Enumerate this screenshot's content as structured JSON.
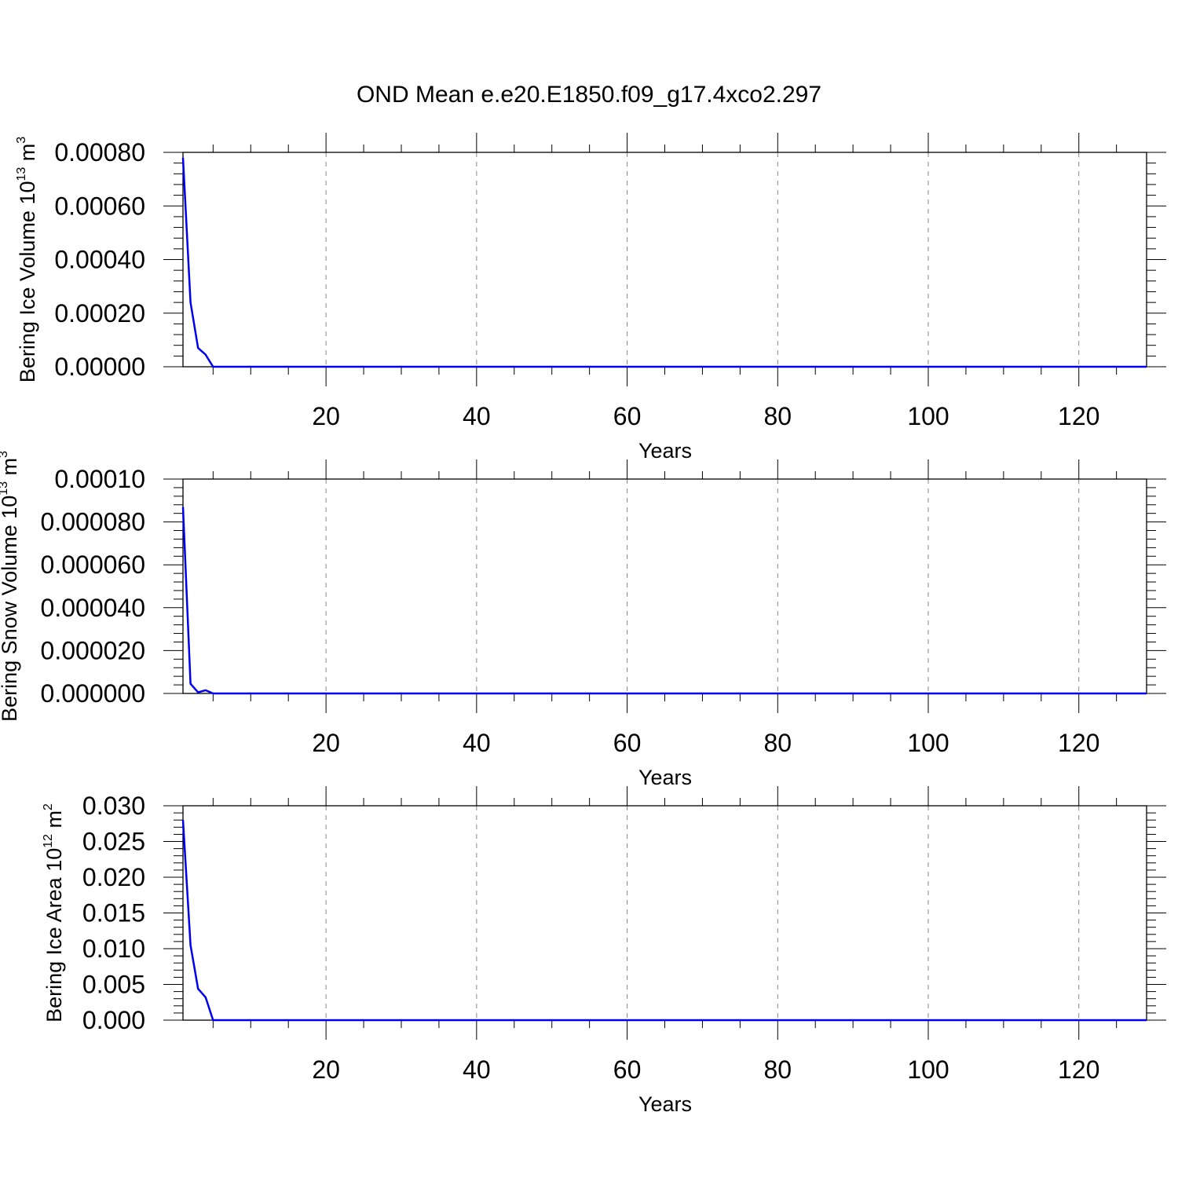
{
  "title": "OND Mean e.e20.E1850.f09_g17.4xco2.297",
  "colors": {
    "line": "#0000ee",
    "axis": "#000000",
    "grid": "#888888"
  },
  "chart_data": [
    {
      "type": "line",
      "ylabel": "Bering Ice Volume 10",
      "ylabel_exp": "13",
      "ylabel_unit": " m",
      "ylabel_unit_exp": "3",
      "xlabel": "Years",
      "xlim": [
        1,
        129
      ],
      "ylim": [
        0,
        0.0008
      ],
      "yticks": [
        0,
        0.0002,
        0.0004,
        0.0006,
        0.0008
      ],
      "ytick_labels": [
        "0.00000",
        "0.00020",
        "0.00040",
        "0.00060",
        "0.00080"
      ],
      "xticks": [
        20,
        40,
        60,
        80,
        100,
        120
      ],
      "xtick_labels": [
        "20",
        "40",
        "60",
        "80",
        "100",
        "120"
      ],
      "grid": "vertical dashed",
      "series": [
        {
          "x": [
            1,
            2,
            3,
            4,
            5,
            129
          ],
          "values": [
            0.00078,
            0.00024,
            7e-05,
            4.5e-05,
            0,
            0
          ]
        }
      ]
    },
    {
      "type": "line",
      "ylabel": "Bering Snow Volume 10",
      "ylabel_exp": "13",
      "ylabel_unit": " m",
      "ylabel_unit_exp": "3",
      "xlabel": "Years",
      "xlim": [
        1,
        129
      ],
      "ylim": [
        0,
        0.0001
      ],
      "yticks": [
        0,
        2e-05,
        4e-05,
        6e-05,
        8e-05,
        0.0001
      ],
      "ytick_labels": [
        "0.000000",
        "0.000020",
        "0.000040",
        "0.000060",
        "0.000080",
        "0.00010"
      ],
      "xticks": [
        20,
        40,
        60,
        80,
        100,
        120
      ],
      "xtick_labels": [
        "20",
        "40",
        "60",
        "80",
        "100",
        "120"
      ],
      "grid": "vertical dashed",
      "series": [
        {
          "x": [
            1,
            2,
            3,
            4,
            5,
            129
          ],
          "values": [
            8.7e-05,
            4.5e-06,
            5e-07,
            1.5e-06,
            0,
            0
          ]
        }
      ]
    },
    {
      "type": "line",
      "ylabel": "Bering Ice Area 10",
      "ylabel_exp": "12",
      "ylabel_unit": " m",
      "ylabel_unit_exp": "2",
      "xlabel": "Years",
      "xlim": [
        1,
        129
      ],
      "ylim": [
        0,
        0.03
      ],
      "yticks": [
        0,
        0.005,
        0.01,
        0.015,
        0.02,
        0.025,
        0.03
      ],
      "ytick_labels": [
        "0.000",
        "0.005",
        "0.010",
        "0.015",
        "0.020",
        "0.025",
        "0.030"
      ],
      "xticks": [
        20,
        40,
        60,
        80,
        100,
        120
      ],
      "xtick_labels": [
        "20",
        "40",
        "60",
        "80",
        "100",
        "120"
      ],
      "grid": "vertical dashed",
      "series": [
        {
          "x": [
            1,
            2,
            3,
            4,
            5,
            129
          ],
          "values": [
            0.028,
            0.0105,
            0.0044,
            0.0032,
            0,
            0
          ]
        }
      ]
    }
  ]
}
